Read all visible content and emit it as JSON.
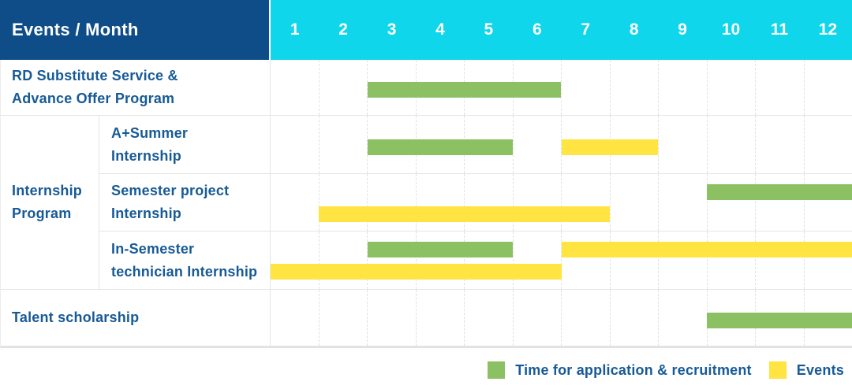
{
  "palette": {
    "navy": "#0E4D87",
    "cyan": "#0FD6EB",
    "green": "#8BC162",
    "yellow": "#FFE442",
    "text_blue": "#175A96"
  },
  "header": {
    "title": "Events / Month",
    "months": [
      "1",
      "2",
      "3",
      "4",
      "5",
      "6",
      "7",
      "8",
      "9",
      "10",
      "11",
      "12"
    ]
  },
  "group_label_lines": [
    "Internship",
    "Program"
  ],
  "chart_data": {
    "type": "table",
    "subtype": "gantt",
    "title": "Events / Month",
    "x_axis": {
      "label": "Month",
      "ticks": [
        1,
        2,
        3,
        4,
        5,
        6,
        7,
        8,
        9,
        10,
        11,
        12
      ],
      "range": [
        1,
        12
      ]
    },
    "series_colors": {
      "application": "#8BC162",
      "event": "#FFE442"
    },
    "legend_entries": [
      "Time for application & recruitment",
      "Events"
    ],
    "rows": [
      {
        "id": "rd-substitute-service",
        "label": [
          "RD Substitute Service &",
          "Advance Offer Program"
        ],
        "group": null,
        "tracks": 1,
        "bars": [
          {
            "series": "application",
            "start_month": 3,
            "end_month": 6,
            "track": 1
          }
        ]
      },
      {
        "id": "a-plus-summer-internship",
        "label": [
          "A+Summer",
          "Internship"
        ],
        "group": "Internship Program",
        "tracks": 1,
        "bars": [
          {
            "series": "application",
            "start_month": 3,
            "end_month": 5,
            "track": 1
          },
          {
            "series": "event",
            "start_month": 7,
            "end_month": 8,
            "track": 1
          }
        ]
      },
      {
        "id": "semester-project-internship",
        "label": [
          "Semester project",
          "Internship"
        ],
        "group": "Internship Program",
        "tracks": 2,
        "bars": [
          {
            "series": "application",
            "start_month": 10,
            "end_month": 12,
            "track": 1
          },
          {
            "series": "event",
            "start_month": 2,
            "end_month": 7,
            "track": 2
          }
        ]
      },
      {
        "id": "in-semester-technician-internship",
        "label": [
          "In-Semester",
          "technician Internship"
        ],
        "group": "Internship Program",
        "tracks": 2,
        "bars": [
          {
            "series": "application",
            "start_month": 3,
            "end_month": 5,
            "track": 1
          },
          {
            "series": "event",
            "start_month": 7,
            "end_month": 12,
            "track": 1
          },
          {
            "series": "event",
            "start_month": 1,
            "end_month": 6,
            "track": 2
          }
        ]
      },
      {
        "id": "talent-scholarship",
        "label": [
          "Talent scholarship"
        ],
        "group": null,
        "tracks": 1,
        "bars": [
          {
            "series": "application",
            "start_month": 10,
            "end_month": 12,
            "track": 1
          }
        ]
      }
    ]
  },
  "legend": {
    "items": [
      {
        "series": "application",
        "label": "Time for application & recruitment",
        "color": "#8BC162"
      },
      {
        "series": "event",
        "label": "Events",
        "color": "#FFE442"
      }
    ]
  }
}
